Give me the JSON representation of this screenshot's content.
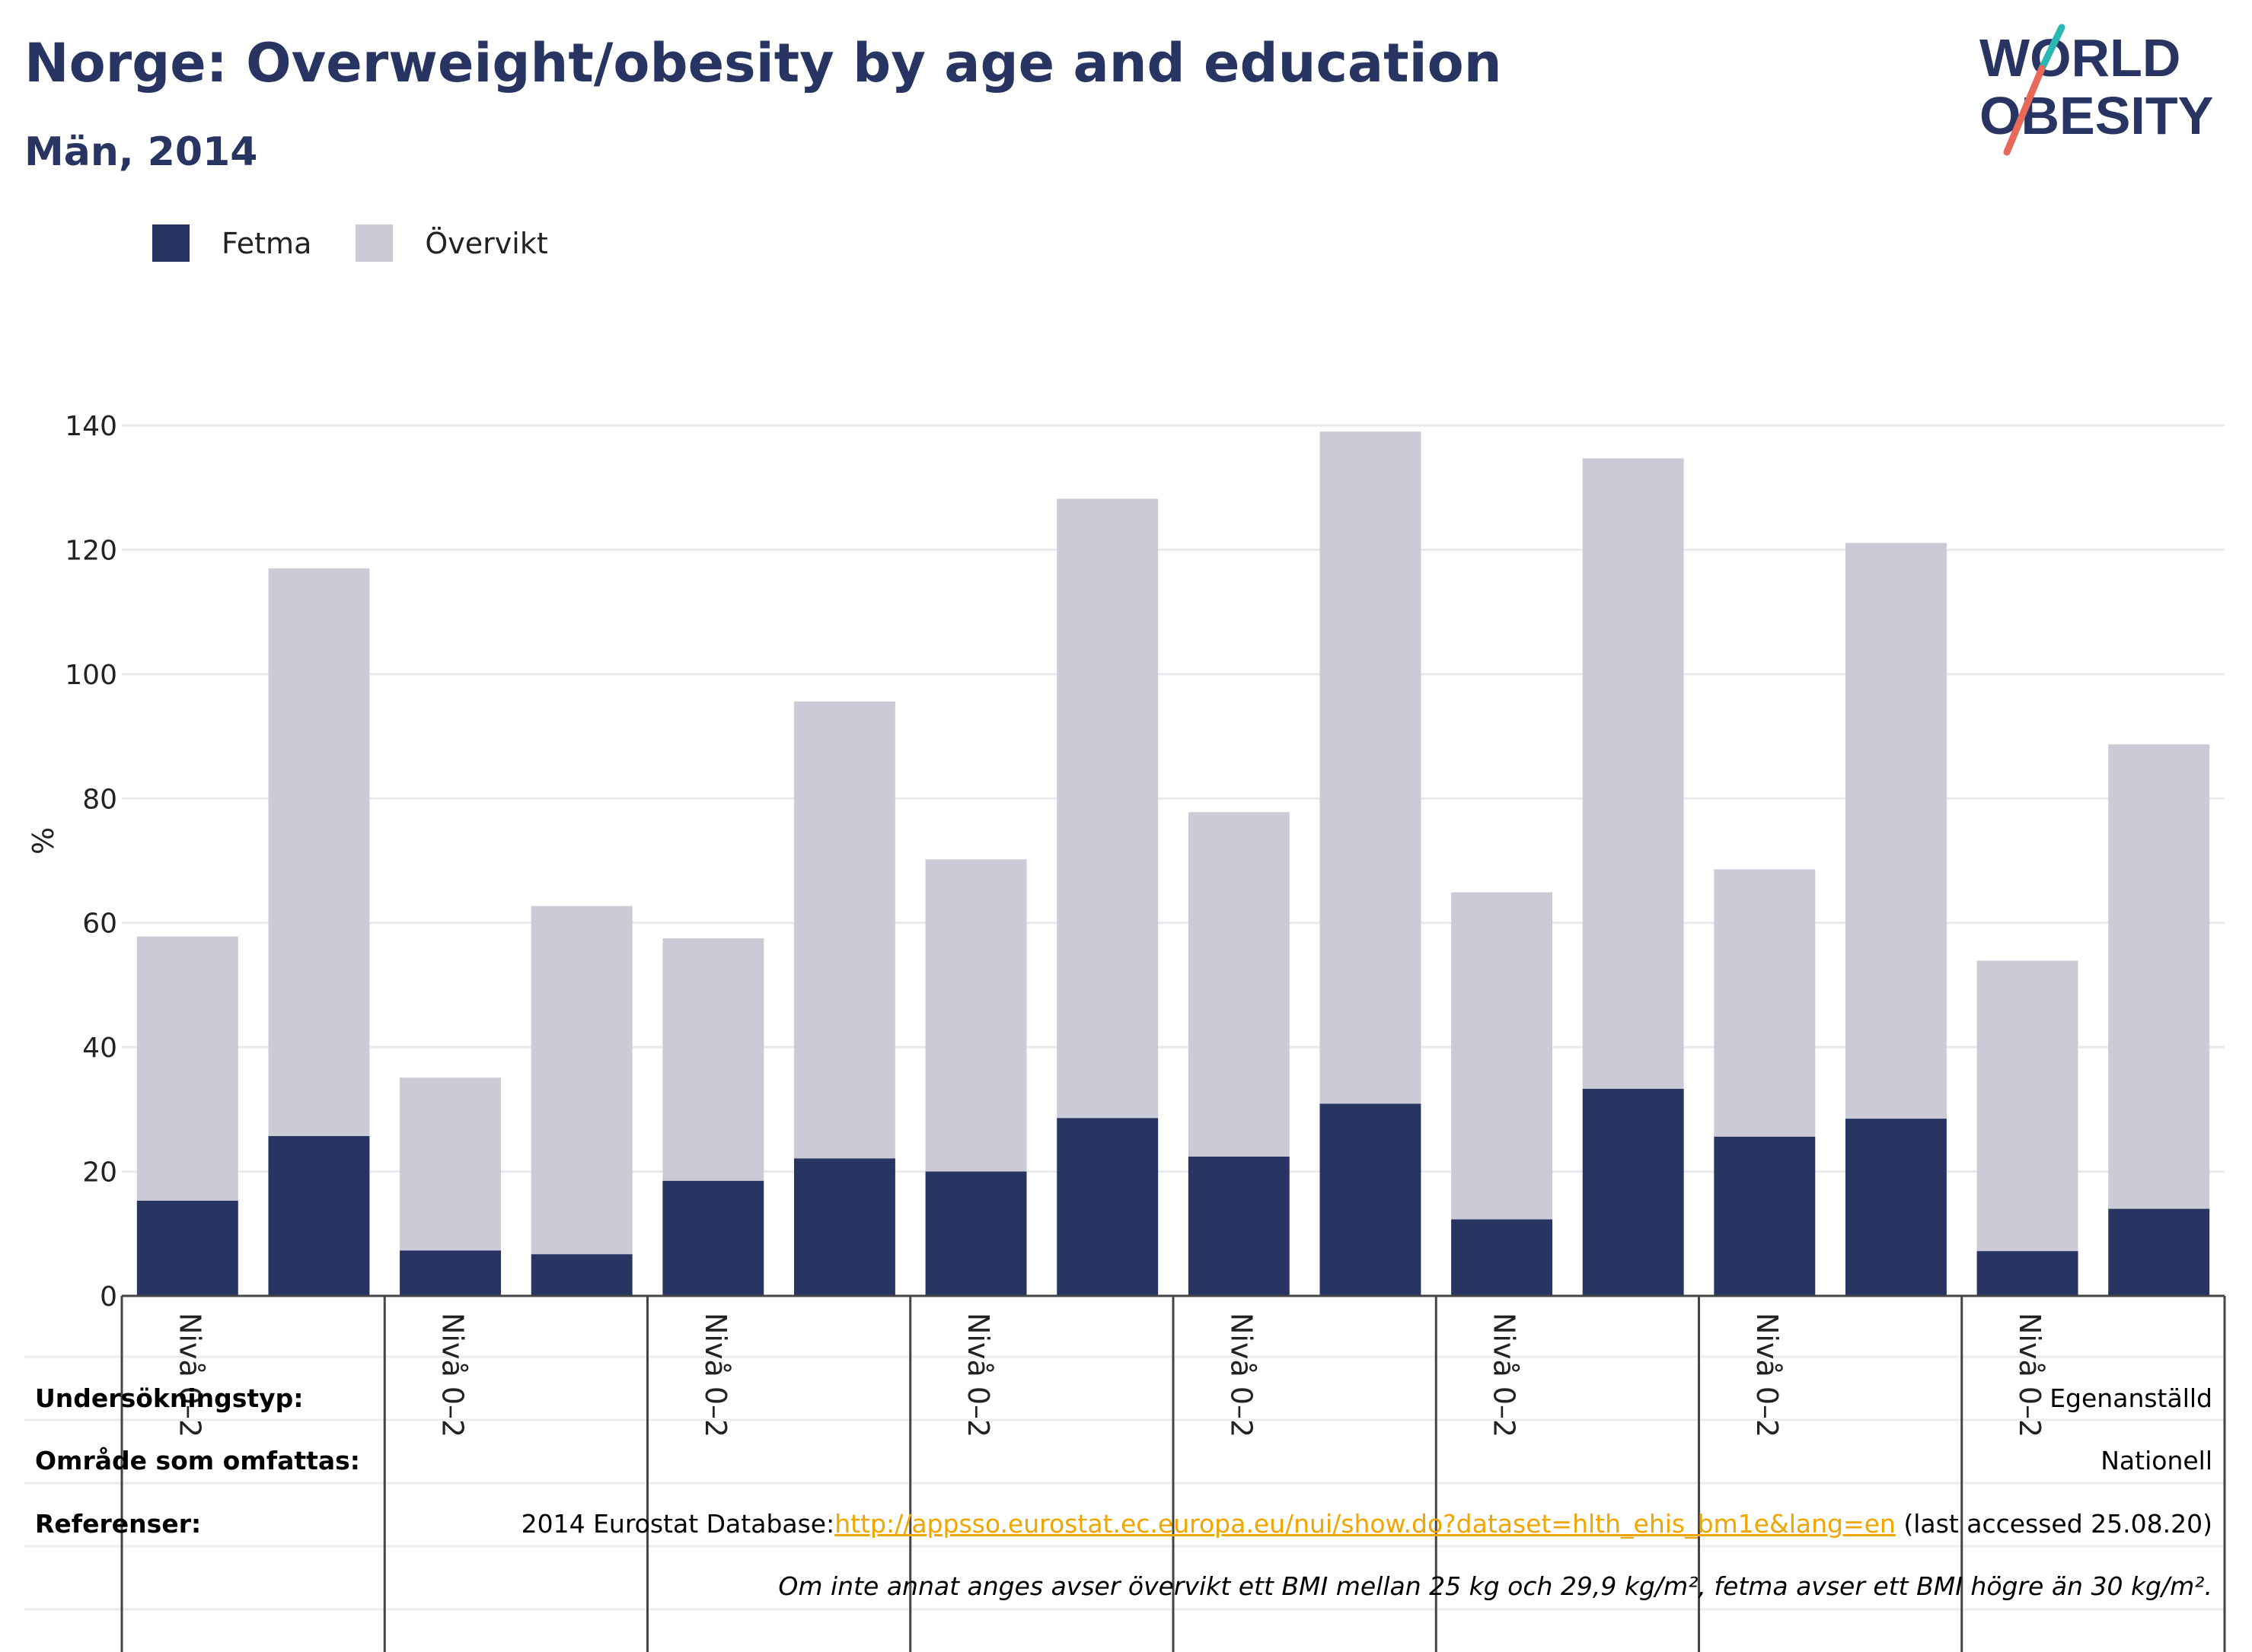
{
  "header": {
    "title": "Norge: Overweight/obesity by age and education",
    "subtitle": "Män, 2014"
  },
  "logo": {
    "line1": "WORLD",
    "line2": "OBESITY"
  },
  "colors": {
    "fetma": "#283562",
    "overvikt": "#cacbd6",
    "title": "#283562",
    "link": "#f0a500"
  },
  "legend": [
    {
      "label": "Fetma",
      "color": "#283562"
    },
    {
      "label": "Övervikt",
      "color": "#cacbd6"
    }
  ],
  "chart_data": {
    "type": "bar",
    "stacked": true,
    "ylabel": "%",
    "ylim": [
      0,
      140
    ],
    "yticks": [
      0,
      20,
      40,
      60,
      80,
      100,
      120,
      140
    ],
    "grid": true,
    "legend_position": "top-left",
    "group_labels": [
      "Nivå 0–2",
      "Nivå 0–2",
      "Nivå 0–2",
      "Nivå 0–2",
      "Nivå 0–2",
      "Nivå 0–2",
      "Nivå 0–2",
      "Nivå 0–2"
    ],
    "series": [
      {
        "name": "Fetma",
        "values": [
          15.3,
          25.7,
          7.3,
          6.7,
          18.5,
          22.1,
          20.0,
          28.6,
          22.4,
          30.9,
          12.3,
          33.3,
          25.6,
          28.5,
          7.2,
          14.0
        ]
      },
      {
        "name": "Övervikt",
        "values": [
          42.5,
          91.3,
          27.8,
          56.0,
          39.0,
          73.5,
          50.2,
          99.6,
          55.4,
          108.1,
          52.6,
          101.4,
          43.0,
          92.6,
          46.7,
          74.7
        ]
      }
    ]
  },
  "footer": {
    "survey_type_label": "Undersökningstyp:",
    "survey_type_value": "Egenanställd",
    "area_label": "Område som omfattas:",
    "area_value": "Nationell",
    "references_label": "Referenser:",
    "references_prefix": "2014 Eurostat Database:",
    "references_link": "http://appsso.eurostat.ec.europa.eu/nui/show.do?dataset=hlth_ehis_bm1e&lang=en",
    "references_suffix": " (last accessed 25.08.20)",
    "note": "Om inte annat anges avser övervikt ett BMI mellan 25 kg och 29,9 kg/m², fetma avser ett BMI högre än 30 kg/m²."
  }
}
